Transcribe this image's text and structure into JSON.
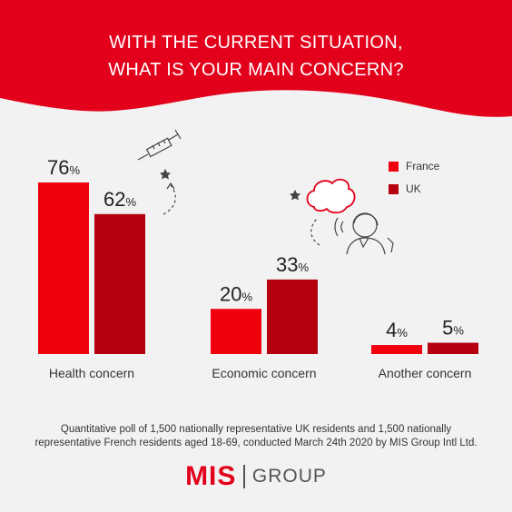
{
  "header": {
    "title_line1": "WITH THE CURRENT SITUATION,",
    "title_line2": "WHAT IS YOUR MAIN CONCERN?",
    "bg_color": "#e3001b"
  },
  "colors": {
    "france": "#f0000f",
    "uk": "#b5000f"
  },
  "chart_data": {
    "type": "bar",
    "title": "WITH THE CURRENT SITUATION, WHAT IS YOUR MAIN CONCERN?",
    "categories": [
      "Health concern",
      "Economic concern",
      "Another concern"
    ],
    "series": [
      {
        "name": "France",
        "values": [
          76,
          20,
          4
        ],
        "color": "#f0000f"
      },
      {
        "name": "UK",
        "values": [
          62,
          33,
          5
        ],
        "color": "#b5000f"
      }
    ],
    "unit": "%",
    "ylim": [
      0,
      76
    ],
    "grid": false,
    "legend_position": "top-right",
    "xlabel": "",
    "ylabel": ""
  },
  "legend": {
    "france_label": "France",
    "uk_label": "UK"
  },
  "footnote": {
    "line1": "Quantitative poll of 1,500 nationally representative UK residents and 1,500 nationally",
    "line2": "representative French residents aged 18-69, conducted March 24th 2020 by MIS Group Intl Ltd."
  },
  "logo": {
    "mis": "MIS",
    "group": "GROUP"
  },
  "icons": [
    "syringe-icon",
    "star-icon",
    "dashed-arrow-icon",
    "thought-cloud-icon",
    "worried-person-icon"
  ]
}
